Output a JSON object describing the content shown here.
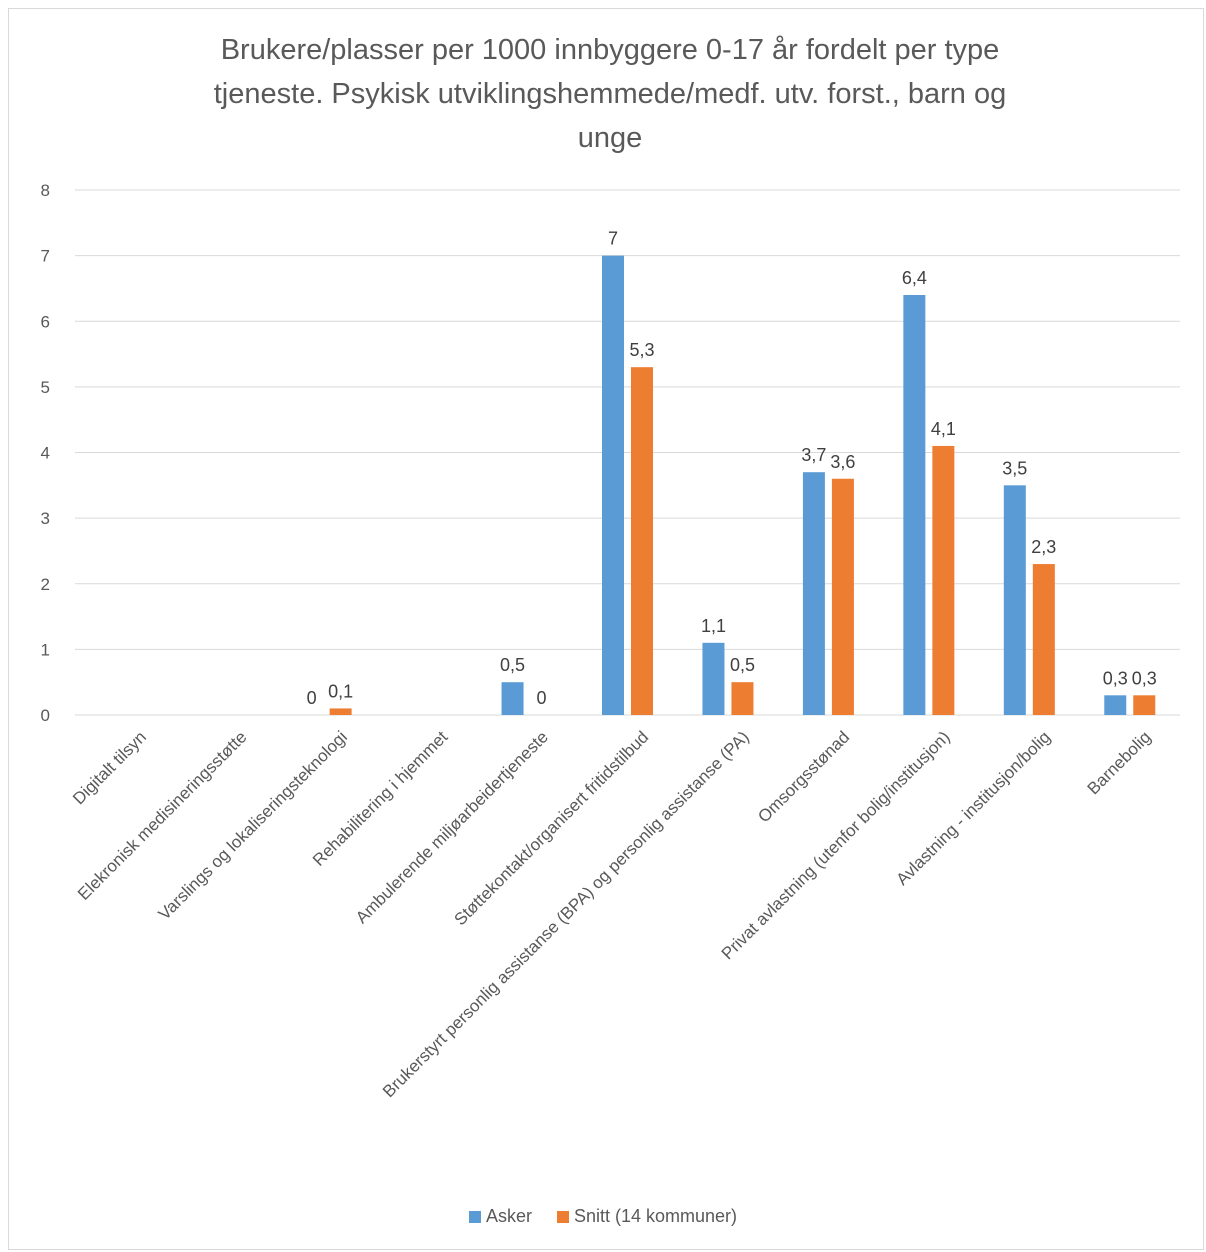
{
  "chart_data": {
    "type": "bar",
    "title_lines": [
      "Brukere/plasser per 1000 innbyggere 0-17 år fordelt per type",
      "tjeneste. Psykisk utviklingshemmede/medf. utv. forst., barn og",
      "unge"
    ],
    "xlabel": "",
    "ylabel": "",
    "ylim": [
      0,
      8
    ],
    "yticks": [
      "0",
      "1",
      "2",
      "3",
      "4",
      "5",
      "6",
      "7",
      "8"
    ],
    "grid": true,
    "legend_position": "bottom",
    "categories": [
      "Digitalt tilsyn",
      "Elekronisk medisineringsstøtte",
      "Varslings og lokaliseringsteknologi",
      "Rehabilitering i hjemmet",
      "Ambulerende miljøarbeidertjeneste",
      "Støttekontakt/organisert fritidstilbud",
      "Brukerstyrt personlig assistanse (BPA) og personlig assistanse (PA)",
      "Omsorgsstønad",
      "Privat avlastning (utenfor bolig/institusjon)",
      "Avlastning - institusjon/bolig",
      "Barnebolig"
    ],
    "series": [
      {
        "name": "Asker",
        "color": "#5B9BD5",
        "values": [
          null,
          null,
          0,
          null,
          0.5,
          7,
          1.1,
          3.7,
          6.4,
          3.5,
          0.3
        ],
        "labels": [
          "",
          "",
          "0",
          "",
          "0,5",
          "7",
          "1,1",
          "3,7",
          "6,4",
          "3,5",
          "0,3"
        ]
      },
      {
        "name": "Snitt (14 kommuner)",
        "color": "#ED7D31",
        "values": [
          null,
          null,
          0.1,
          null,
          0,
          5.3,
          0.5,
          3.6,
          4.1,
          2.3,
          0.3
        ],
        "labels": [
          "",
          "",
          "0,1",
          "",
          "0",
          "5,3",
          "0,5",
          "3,6",
          "4,1",
          "2,3",
          "0,3"
        ]
      }
    ]
  }
}
